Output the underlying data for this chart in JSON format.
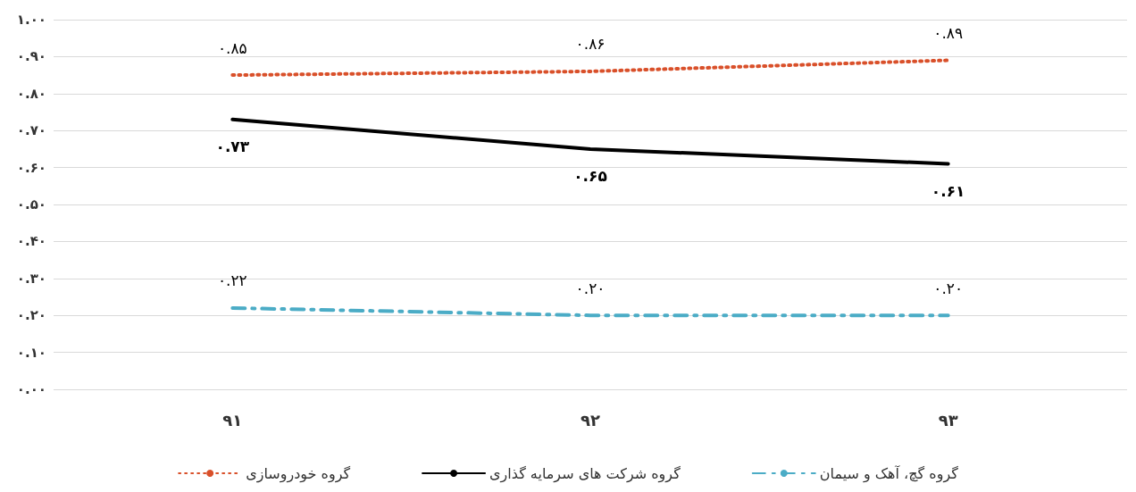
{
  "chart_data": {
    "type": "line",
    "categories": [
      "۹۱",
      "۹۲",
      "۹۳"
    ],
    "series": [
      {
        "name": "گروه خودروسازی",
        "color": "#d9502a",
        "values": [
          0.85,
          0.86,
          0.89
        ],
        "line_style": "dotted",
        "value_labels": [
          "۰.۸۵",
          "۰.۸۶",
          "۰.۸۹"
        ]
      },
      {
        "name": "گروه شرکت های سرمایه گذاری",
        "color": "#000000",
        "values": [
          0.73,
          0.65,
          0.61
        ],
        "line_style": "solid",
        "value_labels": [
          "۰.۷۳",
          "۰.۶۵",
          "۰.۶۱"
        ]
      },
      {
        "name": "گروه گچ، آهک و سیمان",
        "color": "#4bacc6",
        "values": [
          0.22,
          0.2,
          0.2
        ],
        "line_style": "dashed",
        "value_labels": [
          "۰.۲۲",
          "۰.۲۰",
          "۰.۲۰"
        ]
      }
    ],
    "ylim": [
      0,
      1
    ],
    "yticks": [
      {
        "value": 0,
        "label": "۰.۰۰"
      },
      {
        "value": 0.1,
        "label": "۰.۱۰"
      },
      {
        "value": 0.2,
        "label": "۰.۲۰"
      },
      {
        "value": 0.3,
        "label": "۰.۳۰"
      },
      {
        "value": 0.4,
        "label": "۰.۴۰"
      },
      {
        "value": 0.5,
        "label": "۰.۵۰"
      },
      {
        "value": 0.6,
        "label": "۰.۶۰"
      },
      {
        "value": 0.7,
        "label": "۰.۷۰"
      },
      {
        "value": 0.8,
        "label": "۰.۸۰"
      },
      {
        "value": 0.9,
        "label": "۰.۹۰"
      },
      {
        "value": 1,
        "label": "۱.۰۰"
      }
    ],
    "grid": "y",
    "legend": "bottom",
    "marker": "none"
  }
}
